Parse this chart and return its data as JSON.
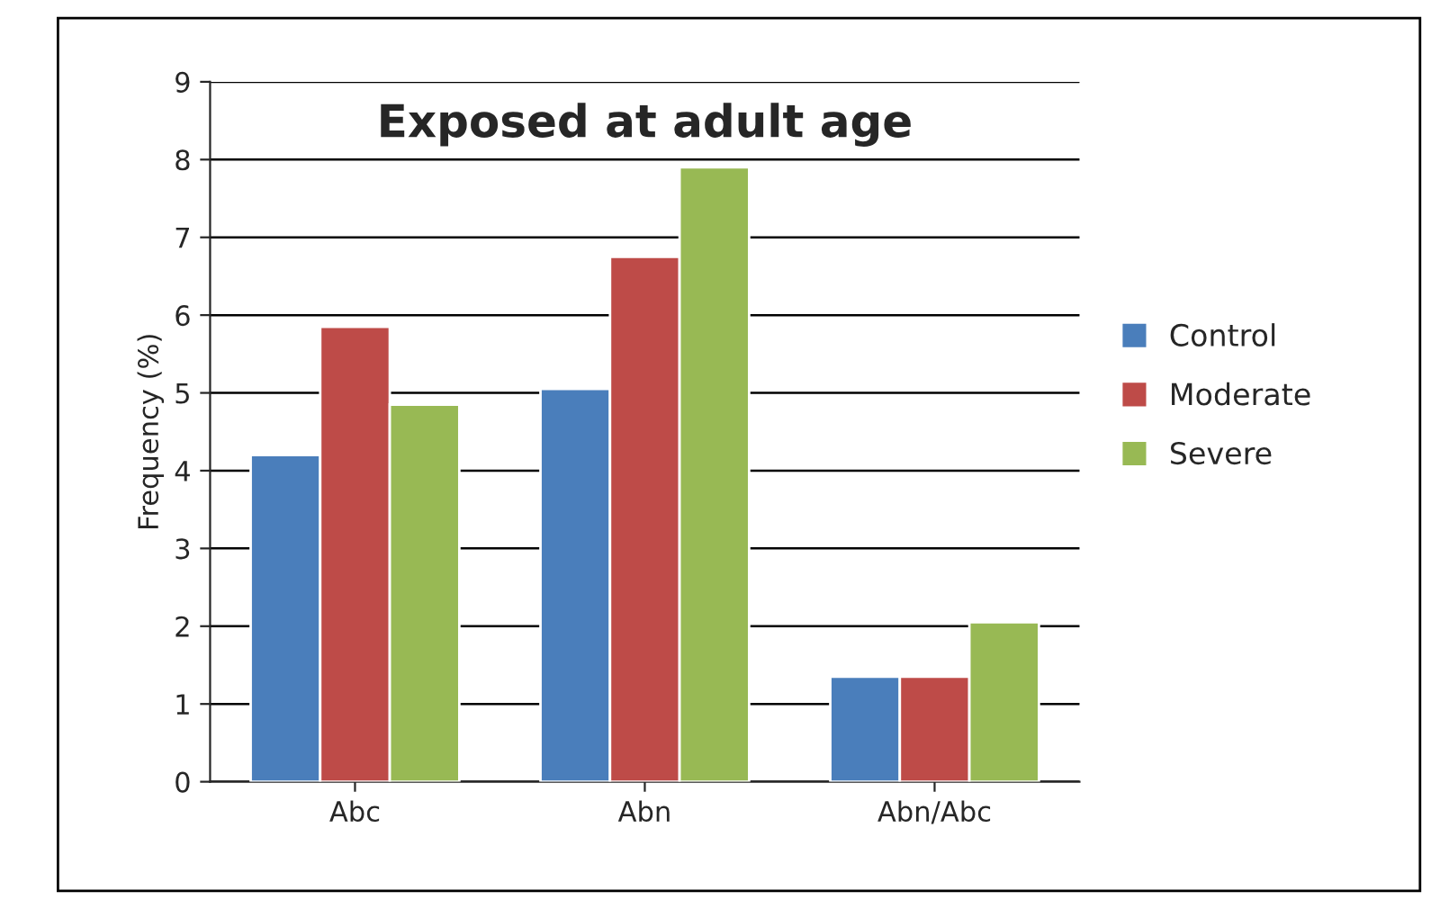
{
  "chart_data": {
    "type": "bar",
    "title": "Exposed at adult age",
    "ylabel": "Frequency (%)",
    "categories": [
      "Abc",
      "Abn",
      "Abn/Abc"
    ],
    "series": [
      {
        "name": "Control",
        "color": "#4a7ebb",
        "values": [
          4.2,
          5.05,
          1.35
        ]
      },
      {
        "name": "Moderate",
        "color": "#be4b48",
        "values": [
          5.85,
          6.75,
          1.35
        ]
      },
      {
        "name": "Severe",
        "color": "#98b954",
        "values": [
          4.85,
          7.9,
          2.05
        ]
      }
    ],
    "ylim": [
      0,
      9
    ],
    "yticks": [
      0,
      1,
      2,
      3,
      4,
      5,
      6,
      7,
      8,
      9
    ],
    "grid": "y",
    "legend": "right"
  }
}
